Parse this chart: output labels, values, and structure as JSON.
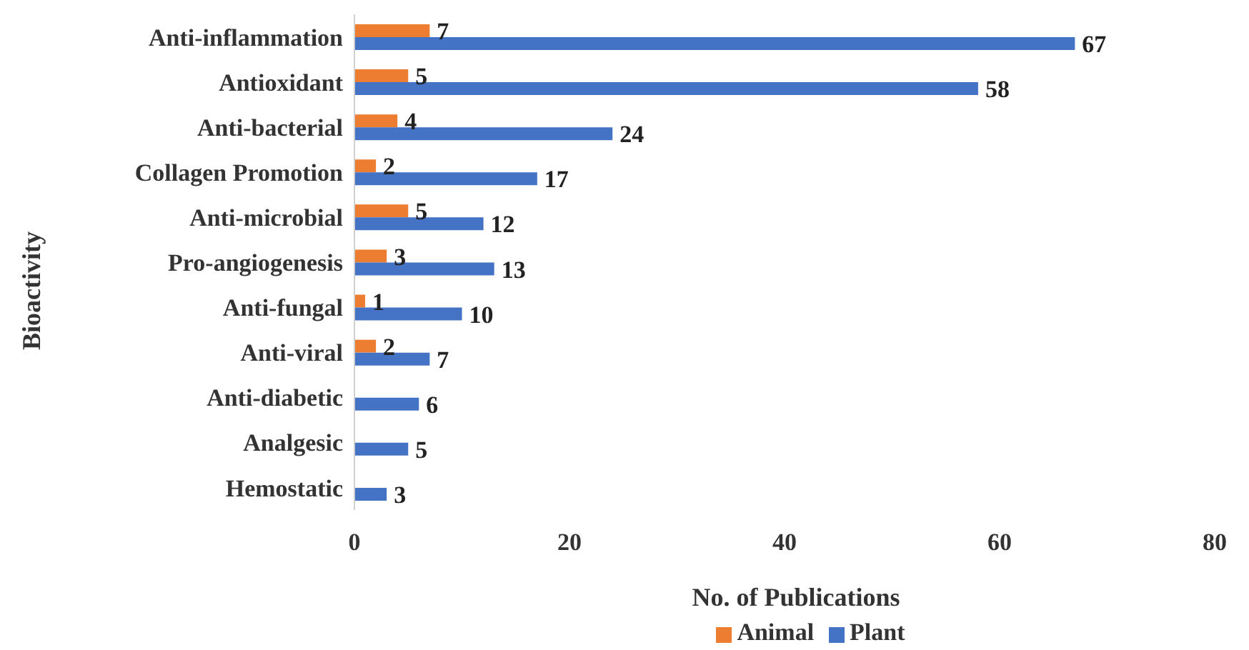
{
  "chart_data": {
    "type": "bar",
    "orientation": "horizontal",
    "xlabel": "No. of Publications",
    "ylabel": "Bioactivity",
    "categories": [
      "Anti-inflammation",
      "Antioxidant",
      "Anti-bacterial",
      "Collagen Promotion",
      "Anti-microbial",
      "Pro-angiogenesis",
      "Anti-fungal",
      "Anti-viral",
      "Anti-diabetic",
      "Analgesic",
      "Hemostatic"
    ],
    "series": [
      {
        "name": "Animal",
        "color": "#ed7d31",
        "values": [
          7,
          5,
          4,
          2,
          5,
          3,
          1,
          2,
          null,
          null,
          null
        ]
      },
      {
        "name": "Plant",
        "color": "#4472c4",
        "values": [
          67,
          58,
          24,
          17,
          12,
          13,
          10,
          7,
          6,
          5,
          3
        ]
      }
    ],
    "xlim": [
      0,
      80
    ],
    "xticks": [
      0,
      20,
      40,
      60,
      80
    ],
    "data_labels": true,
    "grid": false,
    "legend": "bottom"
  }
}
